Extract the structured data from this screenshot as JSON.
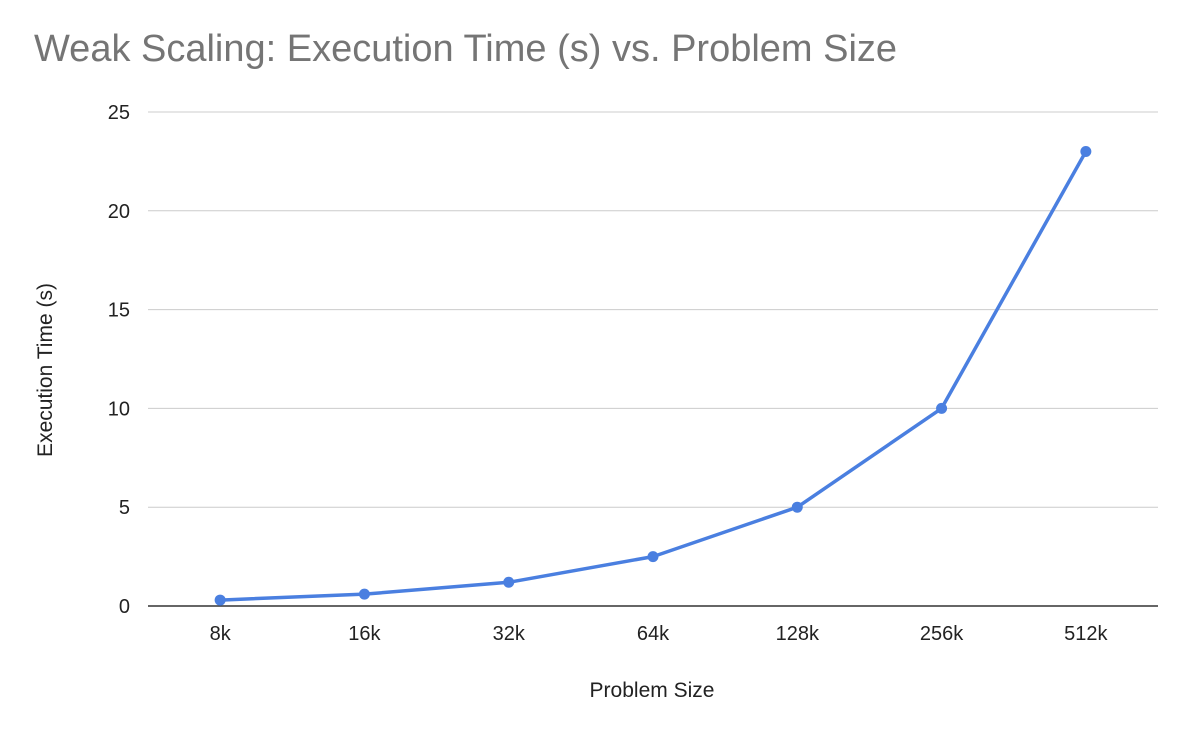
{
  "chart_data": {
    "type": "line",
    "title": "Weak Scaling: Execution Time (s) vs. Problem Size",
    "xlabel": "Problem Size",
    "ylabel": "Execution Time (s)",
    "categories": [
      "8k",
      "16k",
      "32k",
      "64k",
      "128k",
      "256k",
      "512k"
    ],
    "series": [
      {
        "values": [
          0.3,
          0.6,
          1.2,
          2.5,
          5.0,
          10.0,
          23.0
        ]
      }
    ],
    "ylim": [
      0,
      25
    ],
    "yticks": [
      "0",
      "5",
      "10",
      "15",
      "20",
      "25"
    ],
    "grid": true,
    "legend": "none",
    "colors": {
      "line": "#4a7fe0",
      "grid": "#cccccc",
      "axis": "#333333"
    }
  }
}
